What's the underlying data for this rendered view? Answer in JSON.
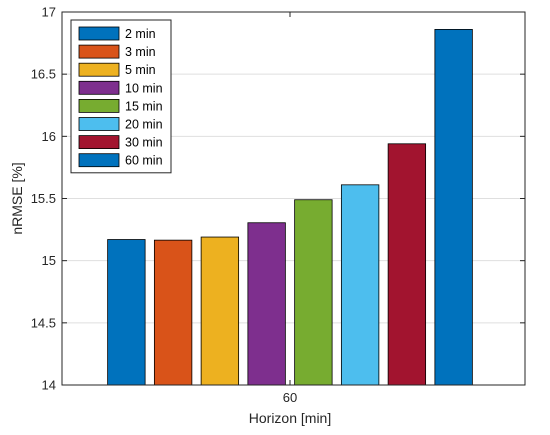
{
  "chart_data": {
    "type": "bar",
    "categories": [
      "60"
    ],
    "xlabel": "Horizon [min]",
    "ylabel": "nRMSE [%]",
    "ylim": [
      14,
      17
    ],
    "yticks": [
      "14",
      "14.5",
      "15",
      "15.5",
      "16",
      "16.5",
      "17"
    ],
    "grid": true,
    "legend_position": "top-left",
    "series": [
      {
        "name": "2 min",
        "values": [
          15.17
        ],
        "color": "#0072BD"
      },
      {
        "name": "3 min",
        "values": [
          15.165
        ],
        "color": "#D95319"
      },
      {
        "name": "5 min",
        "values": [
          15.19
        ],
        "color": "#EDB120"
      },
      {
        "name": "10 min",
        "values": [
          15.305
        ],
        "color": "#7E2F8E"
      },
      {
        "name": "15 min",
        "values": [
          15.49
        ],
        "color": "#77AC30"
      },
      {
        "name": "20 min",
        "values": [
          15.61
        ],
        "color": "#4DBEEE"
      },
      {
        "name": "30 min",
        "values": [
          15.94
        ],
        "color": "#A2142F"
      },
      {
        "name": "60 min",
        "values": [
          16.86
        ],
        "color": "#0072BD"
      }
    ]
  }
}
